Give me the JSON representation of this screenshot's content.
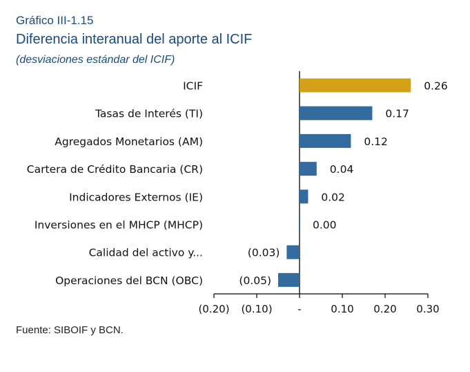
{
  "header": {
    "figure_number": "Gráfico III-1.15",
    "title": "Diferencia interanual del aporte al ICIF",
    "subtitle": "(desviaciones estándar del ICIF)"
  },
  "source": "Fuente: SIBOIF y BCN.",
  "colors": {
    "highlight": "#d4a017",
    "bar": "#336b9e",
    "title": "#1a4a7a"
  },
  "chart_data": {
    "type": "bar",
    "orientation": "horizontal",
    "categories": [
      "ICIF",
      "Tasas de Interés (TI)",
      "Agregados Monetarios (AM)",
      "Cartera de Crédito Bancaria (CR)",
      "Indicadores Externos (IE)",
      "Inversiones en el MHCP (MHCP)",
      "Calidad del activo y...",
      "Operaciones del BCN (OBC)"
    ],
    "values": [
      0.26,
      0.17,
      0.12,
      0.04,
      0.02,
      0.0,
      -0.03,
      -0.05
    ],
    "data_labels": [
      "0.26",
      "0.17",
      "0.12",
      "0.04",
      "0.02",
      "0.00",
      "(0.03)",
      "(0.05)"
    ],
    "highlight_index": 0,
    "xlim": [
      -0.2,
      0.3
    ],
    "xticks": [
      -0.2,
      -0.1,
      0,
      0.1,
      0.2,
      0.3
    ],
    "xtick_labels": [
      "(0.20)",
      "(0.10)",
      "-",
      "0.10",
      "0.20",
      "0.30"
    ],
    "grid": false
  }
}
